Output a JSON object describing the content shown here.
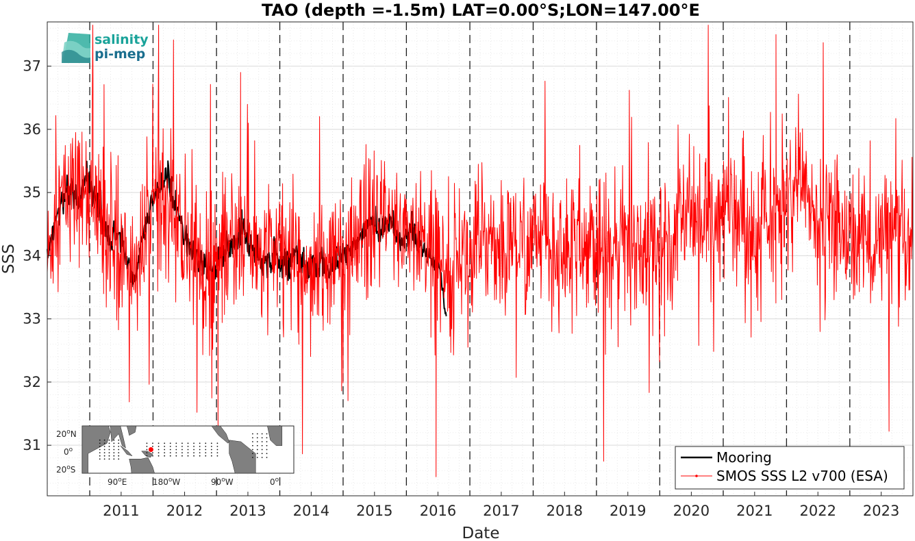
{
  "chart_data": {
    "type": "line",
    "title": "TAO (depth =-1.5m) LAT=0.00°S;LON=147.00°E",
    "xlabel": "Date",
    "ylabel": "SSS",
    "xlim": [
      "2010-05-01",
      "2023-12-31"
    ],
    "ylim": [
      30.2,
      37.7
    ],
    "xticks": [
      "2011",
      "2012",
      "2013",
      "2014",
      "2015",
      "2016",
      "2017",
      "2018",
      "2019",
      "2020",
      "2021",
      "2022",
      "2023"
    ],
    "yticks": [
      "31",
      "32",
      "33",
      "34",
      "35",
      "36",
      "37"
    ],
    "vertical_dashed_lines": [
      "2011-01-01",
      "2012-01-01",
      "2013-01-01",
      "2014-01-01",
      "2015-01-01",
      "2016-01-01",
      "2017-01-01",
      "2018-01-01",
      "2019-01-01",
      "2020-01-01",
      "2021-01-01",
      "2022-01-01",
      "2023-01-01"
    ],
    "grid": true,
    "legend_position": "bottom-right",
    "colors": {
      "mooring": "#000000",
      "smos": "#ff0000"
    },
    "series": [
      {
        "name": "Mooring",
        "color": "#000000",
        "x": [
          "2010-05-01",
          "2010-06-15",
          "2010-08-01",
          "2010-09-15",
          "2010-11-01",
          "2010-12-15",
          "2011-02-01",
          "2011-03-15",
          "2011-05-01",
          "2011-06-15",
          "2011-08-01",
          "2011-09-15",
          "2011-11-01",
          "2011-12-15",
          "2012-02-01",
          "2012-03-15",
          "2012-05-01",
          "2012-06-15",
          "2012-08-01",
          "2012-09-15",
          "2012-11-01",
          "2012-12-15",
          "2013-02-01",
          "2013-04-01",
          "2013-06-01",
          "2013-08-01",
          "2013-10-01",
          "2013-12-01",
          "2014-02-01",
          "2014-04-01",
          "2014-06-01",
          "2014-08-01",
          "2014-10-01",
          "2014-12-01",
          "2015-02-01",
          "2015-04-01",
          "2015-06-01",
          "2015-08-01",
          "2015-10-01",
          "2015-12-01",
          "2016-02-01",
          "2016-04-01",
          "2016-06-01",
          "2016-07-15",
          "2016-08-20"
        ],
        "y": [
          33.9,
          34.6,
          34.9,
          35.1,
          34.8,
          35.3,
          34.9,
          34.6,
          34.2,
          34.4,
          34.0,
          33.6,
          34.2,
          34.8,
          35.0,
          35.3,
          34.9,
          34.5,
          34.1,
          33.9,
          33.8,
          33.8,
          34.0,
          34.2,
          34.4,
          34.1,
          33.9,
          34.0,
          33.9,
          34.0,
          33.8,
          33.9,
          33.8,
          33.9,
          34.1,
          34.2,
          34.6,
          34.4,
          34.6,
          34.2,
          34.4,
          34.1,
          33.9,
          33.8,
          32.9
        ]
      },
      {
        "name": "SMOS SSS L2 v700 (ESA)",
        "color": "#ff0000",
        "x": [
          "2010-05-01",
          "2010-07-01",
          "2010-09-01",
          "2010-11-01",
          "2011-01-01",
          "2011-03-01",
          "2011-05-01",
          "2011-07-01",
          "2011-09-01",
          "2011-11-01",
          "2012-01-01",
          "2012-03-01",
          "2012-05-01",
          "2012-07-01",
          "2012-09-01",
          "2012-11-01",
          "2013-01-01",
          "2013-03-01",
          "2013-05-01",
          "2013-07-01",
          "2013-09-01",
          "2013-11-01",
          "2014-01-01",
          "2014-03-01",
          "2014-05-01",
          "2014-07-01",
          "2014-09-01",
          "2014-11-01",
          "2015-01-01",
          "2015-03-01",
          "2015-05-01",
          "2015-07-01",
          "2015-09-01",
          "2015-11-01",
          "2016-01-01",
          "2016-03-01",
          "2016-05-01",
          "2016-07-01",
          "2016-09-01",
          "2016-11-01",
          "2017-01-01",
          "2017-03-01",
          "2017-05-01",
          "2017-07-01",
          "2017-09-01",
          "2017-11-01",
          "2018-01-01",
          "2018-03-01",
          "2018-05-01",
          "2018-07-01",
          "2018-09-01",
          "2018-11-01",
          "2019-01-01",
          "2019-03-01",
          "2019-05-01",
          "2019-07-01",
          "2019-09-01",
          "2019-11-01",
          "2020-01-01",
          "2020-03-01",
          "2020-05-01",
          "2020-07-01",
          "2020-09-01",
          "2020-11-01",
          "2021-01-01",
          "2021-03-01",
          "2021-05-01",
          "2021-07-01",
          "2021-09-01",
          "2021-11-01",
          "2022-01-01",
          "2022-03-01",
          "2022-05-01",
          "2022-07-01",
          "2022-09-01",
          "2022-11-01",
          "2023-01-01",
          "2023-03-01",
          "2023-05-01",
          "2023-07-01",
          "2023-09-01",
          "2023-11-01",
          "2023-12-31"
        ],
        "y": [
          33.9,
          34.8,
          35.0,
          35.0,
          34.9,
          34.7,
          34.3,
          34.1,
          33.8,
          34.1,
          34.6,
          35.0,
          34.6,
          34.2,
          33.9,
          33.8,
          33.8,
          34.0,
          34.3,
          34.3,
          33.9,
          33.9,
          34.0,
          34.1,
          33.9,
          33.9,
          33.8,
          33.9,
          34.1,
          34.1,
          34.4,
          34.5,
          34.5,
          34.4,
          34.5,
          34.3,
          34.1,
          33.9,
          34.0,
          34.1,
          34.0,
          34.2,
          34.4,
          34.0,
          34.2,
          34.1,
          34.2,
          34.3,
          34.1,
          34.0,
          34.2,
          34.3,
          34.1,
          34.0,
          34.2,
          34.3,
          34.2,
          34.0,
          34.3,
          34.2,
          34.5,
          34.7,
          34.6,
          34.5,
          34.7,
          34.8,
          34.6,
          34.4,
          34.5,
          34.6,
          34.8,
          35.0,
          35.0,
          34.7,
          34.6,
          34.4,
          34.3,
          34.4,
          34.1,
          34.2,
          34.3,
          34.0,
          34.1
        ],
        "noise_std": 0.75,
        "extremes": [
          {
            "x": "2013-01-10",
            "y": 31.2
          },
          {
            "x": "2016-06-20",
            "y": 30.5
          },
          {
            "x": "2021-11-01",
            "y": 37.5
          },
          {
            "x": "2013-05-20",
            "y": 36.9
          },
          {
            "x": "2011-01-20",
            "y": 36.8
          }
        ]
      }
    ]
  },
  "logo": {
    "line1": "salinity",
    "line2": "pi-mep"
  },
  "inset_map": {
    "lat_labels": [
      "20",
      "N",
      "0",
      "20",
      "S"
    ],
    "lon_labels": [
      "90",
      "E",
      "180",
      "W",
      "90",
      "W",
      "0"
    ],
    "degree_sup": "o",
    "marker": {
      "lon": 147.0,
      "lat": 0.0
    }
  }
}
